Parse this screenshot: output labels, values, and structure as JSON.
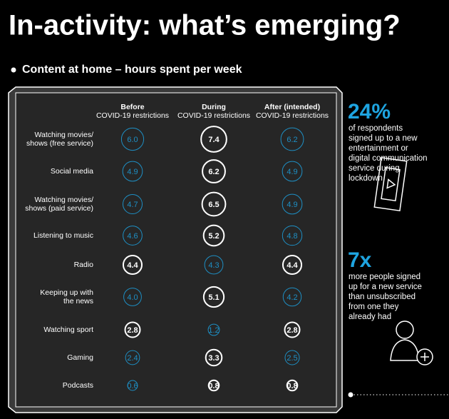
{
  "title": "In-activity: what’s emerging?",
  "subtitle": "Content at home – hours spent per week",
  "table": {
    "columns": [
      [
        "Before",
        "COVID-19 restrictions"
      ],
      [
        "During",
        "COVID-19 restrictions"
      ],
      [
        "After (intended)",
        "COVID-19 restrictions"
      ]
    ],
    "rows": [
      {
        "label": [
          "Watching movies/",
          "shows (free service)"
        ],
        "values": [
          "6.0",
          "7.4",
          "6.2"
        ]
      },
      {
        "label": [
          "Social media"
        ],
        "values": [
          "4.9",
          "6.2",
          "4.9"
        ]
      },
      {
        "label": [
          "Watching movies/",
          "shows (paid service)"
        ],
        "values": [
          "4.7",
          "6.5",
          "4.9"
        ]
      },
      {
        "label": [
          "Listening to music"
        ],
        "values": [
          "4.6",
          "5.2",
          "4.8"
        ]
      },
      {
        "label": [
          "Radio"
        ],
        "values": [
          "4.4",
          "4.3",
          "4.4"
        ]
      },
      {
        "label": [
          "Keeping up with",
          "the news"
        ],
        "values": [
          "4.0",
          "5.1",
          "4.2"
        ]
      },
      {
        "label": [
          "Watching sport"
        ],
        "values": [
          "2.8",
          "1.2",
          "2.8"
        ]
      },
      {
        "label": [
          "Gaming"
        ],
        "values": [
          "2.4",
          "3.3",
          "2.5"
        ]
      },
      {
        "label": [
          "Podcasts"
        ],
        "values": [
          "0.6",
          "0.8",
          "0.8"
        ]
      }
    ]
  },
  "stats": [
    {
      "figure": "24%",
      "text": [
        "of respondents",
        "signed up to a new",
        "entertainment or",
        "digital communication",
        "service during",
        "lockdown"
      ]
    },
    {
      "figure": "7x",
      "text": [
        "more people signed",
        "up for a new service",
        "than unsubscribed",
        "from one they",
        "already had"
      ]
    }
  ]
}
